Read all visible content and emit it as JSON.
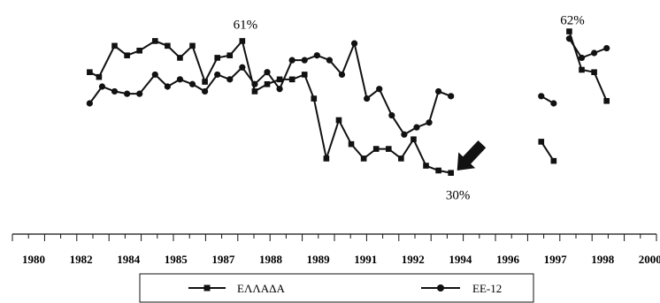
{
  "chart_data": {
    "type": "line",
    "title": "",
    "xlabel": "",
    "ylabel": "",
    "xlim": [
      1980,
      2000
    ],
    "x_ticks": [
      "1980",
      "1982",
      "1984",
      "1985",
      "1987",
      "1988",
      "1989",
      "1991",
      "1992",
      "1994",
      "1996",
      "1997",
      "1998",
      "2000"
    ],
    "grid": false,
    "legend_position": "bottom",
    "series": [
      {
        "name": "ΕΛΛΑΔΑ",
        "marker": "square",
        "segments": [
          [
            [
              1981.8,
              48
            ],
            [
              1982.1,
              46
            ],
            [
              1982.6,
              59
            ],
            [
              1983.0,
              55
            ],
            [
              1983.4,
              57
            ],
            [
              1983.9,
              61
            ],
            [
              1984.3,
              59
            ],
            [
              1984.7,
              54
            ],
            [
              1985.1,
              59
            ],
            [
              1985.5,
              44
            ],
            [
              1985.9,
              54
            ],
            [
              1986.3,
              55
            ],
            [
              1986.7,
              61
            ],
            [
              1987.1,
              40
            ],
            [
              1987.5,
              43
            ],
            [
              1987.9,
              45
            ],
            [
              1988.3,
              45
            ],
            [
              1988.7,
              47
            ],
            [
              1989.0,
              37
            ],
            [
              1989.4,
              12
            ],
            [
              1989.8,
              28
            ],
            [
              1990.2,
              18
            ],
            [
              1990.6,
              12
            ],
            [
              1991.0,
              16
            ],
            [
              1991.4,
              16
            ],
            [
              1991.8,
              12
            ],
            [
              1992.2,
              20
            ],
            [
              1992.6,
              9
            ],
            [
              1993.0,
              7
            ],
            [
              1993.4,
              6
            ]
          ],
          [
            [
              1996.3,
              19
            ],
            [
              1996.7,
              11
            ]
          ],
          [
            [
              1997.2,
              65
            ],
            [
              1997.6,
              49
            ],
            [
              1998.0,
              48
            ],
            [
              1998.4,
              36
            ]
          ]
        ]
      },
      {
        "name": "ΕΕ-12",
        "marker": "circle",
        "segments": [
          [
            [
              1981.8,
              35
            ],
            [
              1982.2,
              42
            ],
            [
              1982.6,
              40
            ],
            [
              1983.0,
              39
            ],
            [
              1983.4,
              39
            ],
            [
              1983.9,
              47
            ],
            [
              1984.3,
              42
            ],
            [
              1984.7,
              45
            ],
            [
              1985.1,
              43
            ],
            [
              1985.5,
              40
            ],
            [
              1985.9,
              47
            ],
            [
              1986.3,
              45
            ],
            [
              1986.7,
              50
            ],
            [
              1987.1,
              43
            ],
            [
              1987.5,
              48
            ],
            [
              1987.9,
              41
            ],
            [
              1988.3,
              53
            ],
            [
              1988.7,
              53
            ],
            [
              1989.1,
              55
            ],
            [
              1989.5,
              53
            ],
            [
              1989.9,
              47
            ],
            [
              1990.3,
              60
            ],
            [
              1990.7,
              37
            ],
            [
              1991.1,
              41
            ],
            [
              1991.5,
              30
            ],
            [
              1991.9,
              22
            ],
            [
              1992.3,
              25
            ],
            [
              1992.7,
              27
            ],
            [
              1993.0,
              40
            ],
            [
              1993.4,
              38
            ]
          ],
          [
            [
              1996.3,
              38
            ],
            [
              1996.7,
              35
            ]
          ],
          [
            [
              1997.2,
              62
            ],
            [
              1997.6,
              54
            ],
            [
              1998.0,
              56
            ],
            [
              1998.4,
              58
            ]
          ]
        ]
      }
    ],
    "annotations": [
      {
        "text": "61%",
        "x": 1986.8,
        "y": 61
      },
      {
        "text": "62%",
        "x": 1997.3,
        "y": 65
      },
      {
        "text": "30%",
        "x": 1993.4,
        "y": 6
      }
    ],
    "arrow": {
      "from": [
        1994.4,
        18
      ],
      "to": [
        1993.6,
        7
      ]
    }
  }
}
